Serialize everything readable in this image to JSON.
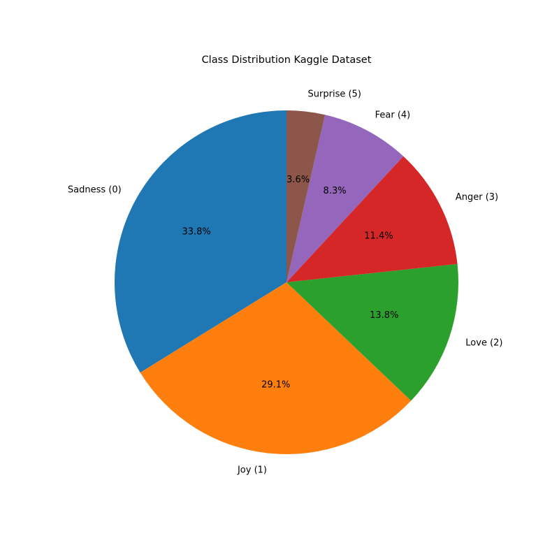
{
  "chart_data": {
    "type": "pie",
    "title": "Class Distribution Kaggle Dataset",
    "categories": [
      "Sadness (0)",
      "Joy (1)",
      "Love (2)",
      "Anger (3)",
      "Fear (4)",
      "Surprise (5)"
    ],
    "values": [
      33.8,
      29.1,
      13.8,
      11.4,
      8.3,
      3.6
    ],
    "value_labels": [
      "33.8%",
      "29.1%",
      "13.8%",
      "11.4%",
      "8.3%",
      "3.6%"
    ],
    "colors": [
      "#1f77b4",
      "#ff7f0e",
      "#2ca02c",
      "#d62728",
      "#9467bd",
      "#8c564b"
    ],
    "start_angle_deg": 90,
    "direction": "counterclockwise",
    "legend": "none"
  }
}
